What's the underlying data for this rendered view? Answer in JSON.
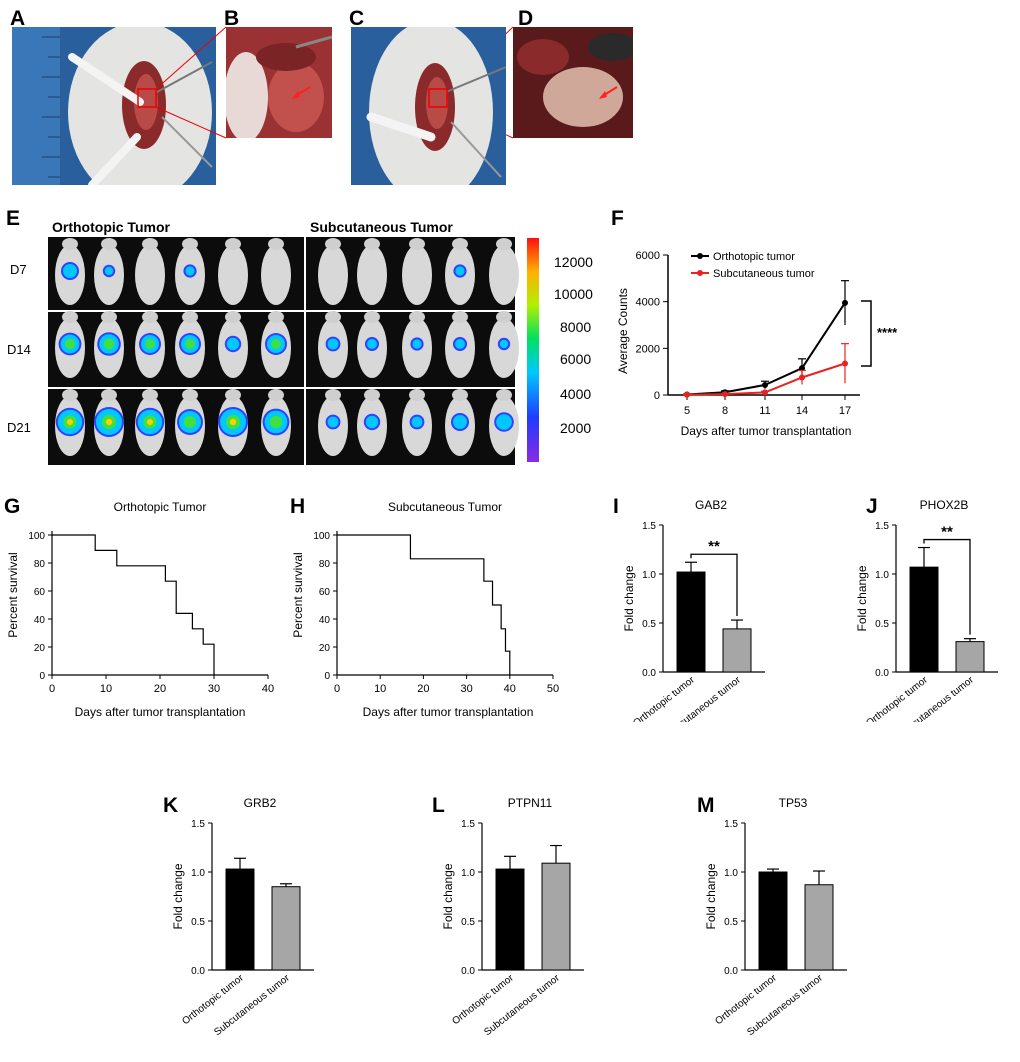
{
  "panel_letters": [
    "A",
    "B",
    "C",
    "D",
    "E",
    "F",
    "G",
    "H",
    "I",
    "J",
    "K",
    "L",
    "M"
  ],
  "colors": {
    "orthotopic": "#000000",
    "subcutaneous": "#e8231f",
    "bar_ortho": "#000000",
    "bar_subcut": "#a6a6a6",
    "imaging_bg": "#0c0c0c",
    "surgery_blue": "#2a5f9e"
  },
  "panel_E": {
    "group_labels": [
      "Orthotopic Tumor",
      "Subcutaneous Tumor"
    ],
    "day_labels": [
      "D7",
      "D14",
      "D21"
    ],
    "colorbar_ticks": [
      "12000",
      "10000",
      "8000",
      "6000",
      "4000",
      "2000"
    ]
  },
  "chart_data": [
    {
      "panel": "F",
      "type": "line",
      "title": "",
      "xlabel": "Days after tumor transplantation",
      "ylabel": "Average Counts",
      "x": [
        5,
        8,
        11,
        14,
        17
      ],
      "xticks": [
        "5",
        "8",
        "11",
        "14",
        "17"
      ],
      "yticks": [
        "0",
        "2000",
        "4000",
        "6000"
      ],
      "ylim": [
        0,
        6000
      ],
      "legend_position": "top-left",
      "significance": "****",
      "series": [
        {
          "name": "Orthotopic tumor",
          "values": [
            20,
            120,
            430,
            1150,
            3950
          ],
          "errors": [
            20,
            60,
            160,
            400,
            950
          ]
        },
        {
          "name": "Subcutaneous tumor",
          "values": [
            10,
            40,
            110,
            750,
            1350
          ],
          "errors": [
            10,
            20,
            50,
            300,
            850
          ]
        }
      ]
    },
    {
      "panel": "G",
      "type": "line",
      "title": "Orthotopic Tumor",
      "xlabel": "Days after tumor transplantation",
      "ylabel": "Percent survival",
      "xticks": [
        "0",
        "10",
        "20",
        "30",
        "40"
      ],
      "yticks": [
        "0",
        "20",
        "40",
        "60",
        "80",
        "100"
      ],
      "xlim": [
        0,
        40
      ],
      "ylim": [
        0,
        100
      ],
      "step_x": [
        0,
        8,
        8,
        12,
        12,
        21,
        21,
        23,
        23,
        26,
        26,
        28,
        28,
        30,
        30
      ],
      "step_y": [
        100,
        100,
        89,
        89,
        78,
        78,
        67,
        67,
        44,
        44,
        33,
        33,
        22,
        22,
        0
      ]
    },
    {
      "panel": "H",
      "type": "line",
      "title": "Subcutaneous Tumor",
      "xlabel": "Days after tumor transplantation",
      "ylabel": "Percent survival",
      "xticks": [
        "0",
        "10",
        "20",
        "30",
        "40",
        "50"
      ],
      "yticks": [
        "0",
        "20",
        "40",
        "60",
        "80",
        "100"
      ],
      "xlim": [
        0,
        50
      ],
      "ylim": [
        0,
        100
      ],
      "step_x": [
        0,
        17,
        17,
        34,
        34,
        36,
        36,
        38,
        38,
        39,
        39,
        40,
        40
      ],
      "step_y": [
        100,
        100,
        83,
        83,
        67,
        67,
        50,
        50,
        33,
        33,
        17,
        17,
        0
      ]
    },
    {
      "panel": "I",
      "type": "bar",
      "title": "GAB2",
      "ylabel": "Fold change",
      "categories": [
        "Orthotopic tumor",
        "Subcutaneous tumor"
      ],
      "values": [
        1.02,
        0.44
      ],
      "errors": [
        0.1,
        0.09
      ],
      "yticks": [
        "0.0",
        "0.5",
        "1.0",
        "1.5"
      ],
      "ylim": [
        0,
        1.5
      ],
      "significance": "**"
    },
    {
      "panel": "J",
      "type": "bar",
      "title": "PHOX2B",
      "ylabel": "Fold change",
      "categories": [
        "Orthotopic tumor",
        "Subcutaneous tumor"
      ],
      "values": [
        1.07,
        0.31
      ],
      "errors": [
        0.2,
        0.03
      ],
      "yticks": [
        "0.0",
        "0.5",
        "1.0",
        "1.5"
      ],
      "ylim": [
        0,
        1.5
      ],
      "significance": "**"
    },
    {
      "panel": "K",
      "type": "bar",
      "title": "GRB2",
      "ylabel": "Fold change",
      "categories": [
        "Orthotopic tumor",
        "Subcutaneous tumor"
      ],
      "values": [
        1.03,
        0.85
      ],
      "errors": [
        0.11,
        0.03
      ],
      "yticks": [
        "0.0",
        "0.5",
        "1.0",
        "1.5"
      ],
      "ylim": [
        0,
        1.5
      ]
    },
    {
      "panel": "L",
      "type": "bar",
      "title": "PTPN11",
      "ylabel": "Fold change",
      "categories": [
        "Orthotopic tumor",
        "Subcutaneous tumor"
      ],
      "values": [
        1.03,
        1.09
      ],
      "errors": [
        0.13,
        0.18
      ],
      "yticks": [
        "0.0",
        "0.5",
        "1.0",
        "1.5"
      ],
      "ylim": [
        0,
        1.5
      ]
    },
    {
      "panel": "M",
      "type": "bar",
      "title": "TP53",
      "ylabel": "Fold change",
      "categories": [
        "Orthotopic tumor",
        "Subcutaneous tumor"
      ],
      "values": [
        1.0,
        0.87
      ],
      "errors": [
        0.03,
        0.14
      ],
      "yticks": [
        "0.0",
        "0.5",
        "1.0",
        "1.5"
      ],
      "ylim": [
        0,
        1.5
      ]
    }
  ]
}
